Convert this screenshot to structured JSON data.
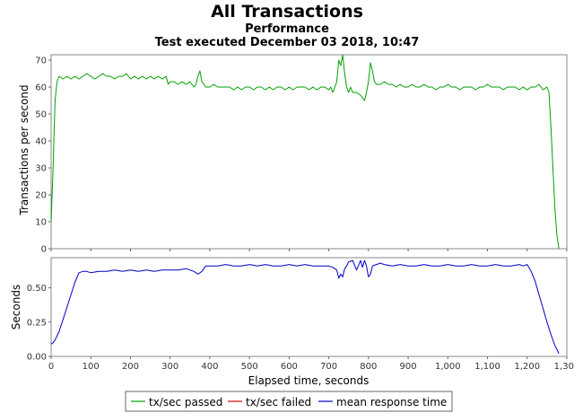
{
  "chart_data": [
    {
      "type": "line",
      "title": "All Transactions",
      "subtitle": "Performance",
      "subtitle2": "Test executed December 03 2018, 10:47",
      "xlabel": "",
      "ylabel": "Transactions per second",
      "xlim": [
        0,
        1300
      ],
      "ylim": [
        0,
        72
      ],
      "y_ticks": [
        "0",
        "10",
        "20",
        "30",
        "40",
        "50",
        "60",
        "70"
      ],
      "grid": false,
      "series": [
        {
          "name": "tx/sec passed",
          "color": "#00a000",
          "x": [
            0,
            5,
            10,
            15,
            20,
            30,
            40,
            50,
            60,
            70,
            80,
            90,
            100,
            110,
            120,
            130,
            140,
            150,
            160,
            170,
            180,
            190,
            200,
            210,
            220,
            230,
            240,
            250,
            260,
            270,
            280,
            290,
            295,
            300,
            310,
            320,
            330,
            340,
            350,
            360,
            365,
            370,
            375,
            380,
            385,
            390,
            400,
            410,
            420,
            430,
            440,
            450,
            460,
            470,
            480,
            490,
            500,
            510,
            520,
            530,
            540,
            550,
            560,
            570,
            580,
            590,
            600,
            610,
            620,
            630,
            640,
            650,
            660,
            670,
            680,
            690,
            700,
            705,
            710,
            715,
            720,
            725,
            730,
            735,
            740,
            745,
            750,
            755,
            760,
            770,
            780,
            790,
            795,
            800,
            805,
            810,
            815,
            820,
            830,
            840,
            850,
            860,
            870,
            880,
            890,
            900,
            910,
            920,
            930,
            940,
            950,
            960,
            970,
            980,
            990,
            1000,
            1010,
            1020,
            1030,
            1040,
            1050,
            1060,
            1070,
            1080,
            1090,
            1100,
            1110,
            1120,
            1130,
            1140,
            1150,
            1160,
            1170,
            1180,
            1190,
            1200,
            1210,
            1220,
            1230,
            1240,
            1250,
            1255,
            1260,
            1265,
            1270,
            1275,
            1280
          ],
          "y": [
            10,
            30,
            55,
            62,
            64,
            63,
            64,
            63,
            64,
            63,
            64,
            65,
            64,
            63,
            64,
            65,
            64,
            64,
            63,
            64,
            64,
            65,
            63,
            64,
            63,
            64,
            63,
            64,
            63,
            64,
            63,
            64,
            61,
            62,
            62,
            61,
            62,
            61,
            62,
            60,
            61,
            64,
            66,
            62,
            61,
            60,
            60,
            61,
            60,
            60,
            60,
            60,
            59,
            60,
            59,
            60,
            60,
            59,
            60,
            60,
            59,
            60,
            59,
            60,
            60,
            59,
            60,
            59,
            60,
            60,
            60,
            59,
            60,
            59,
            60,
            60,
            59,
            60,
            58,
            60,
            62,
            70,
            68,
            72,
            65,
            60,
            58,
            60,
            58,
            58,
            57,
            55,
            58,
            62,
            69,
            66,
            62,
            61,
            61,
            62,
            61,
            61,
            60,
            61,
            60,
            60,
            61,
            60,
            60,
            61,
            60,
            60,
            59,
            60,
            60,
            61,
            60,
            60,
            59,
            60,
            60,
            60,
            59,
            60,
            60,
            61,
            60,
            60,
            60,
            59,
            60,
            60,
            60,
            59,
            60,
            59,
            60,
            60,
            61,
            59,
            60,
            58,
            45,
            30,
            15,
            5,
            0
          ]
        },
        {
          "name": "tx/sec failed",
          "color": "#e00000",
          "x": [],
          "y": []
        }
      ]
    },
    {
      "type": "line",
      "xlabel": "Elapsed time, seconds",
      "ylabel": "Seconds",
      "xlim": [
        0,
        1300
      ],
      "ylim": [
        0,
        0.72
      ],
      "y_ticks": [
        "0.00",
        "0.25",
        "0.50"
      ],
      "x_ticks": [
        "0",
        "100",
        "200",
        "300",
        "400",
        "500",
        "600",
        "700",
        "800",
        "900",
        "1,000",
        "1,100",
        "1,200",
        "1,300"
      ],
      "grid": false,
      "series": [
        {
          "name": "mean response time",
          "color": "#0000c8",
          "x": [
            0,
            5,
            10,
            20,
            30,
            40,
            50,
            60,
            70,
            80,
            90,
            100,
            120,
            140,
            160,
            180,
            200,
            220,
            240,
            260,
            280,
            300,
            320,
            340,
            360,
            370,
            380,
            390,
            400,
            420,
            440,
            460,
            480,
            500,
            520,
            540,
            560,
            580,
            600,
            620,
            640,
            660,
            680,
            700,
            710,
            720,
            725,
            730,
            735,
            740,
            745,
            750,
            760,
            770,
            780,
            785,
            790,
            795,
            800,
            805,
            810,
            820,
            830,
            840,
            860,
            880,
            900,
            920,
            940,
            960,
            980,
            1000,
            1020,
            1040,
            1060,
            1080,
            1100,
            1120,
            1140,
            1160,
            1180,
            1190,
            1200,
            1210,
            1220,
            1230,
            1240,
            1250,
            1260,
            1270,
            1280
          ],
          "y": [
            0.09,
            0.1,
            0.12,
            0.18,
            0.27,
            0.36,
            0.45,
            0.54,
            0.61,
            0.62,
            0.62,
            0.61,
            0.62,
            0.62,
            0.63,
            0.62,
            0.63,
            0.62,
            0.63,
            0.62,
            0.63,
            0.63,
            0.63,
            0.64,
            0.62,
            0.6,
            0.62,
            0.66,
            0.66,
            0.66,
            0.67,
            0.66,
            0.66,
            0.67,
            0.66,
            0.67,
            0.66,
            0.66,
            0.67,
            0.66,
            0.67,
            0.66,
            0.66,
            0.66,
            0.65,
            0.63,
            0.57,
            0.6,
            0.58,
            0.64,
            0.66,
            0.69,
            0.7,
            0.63,
            0.7,
            0.65,
            0.7,
            0.66,
            0.58,
            0.6,
            0.66,
            0.67,
            0.68,
            0.67,
            0.66,
            0.67,
            0.66,
            0.66,
            0.67,
            0.66,
            0.66,
            0.67,
            0.66,
            0.66,
            0.67,
            0.66,
            0.66,
            0.67,
            0.66,
            0.66,
            0.67,
            0.66,
            0.67,
            0.62,
            0.55,
            0.45,
            0.35,
            0.25,
            0.16,
            0.08,
            0.02
          ]
        }
      ]
    }
  ],
  "legend": [
    {
      "label": "tx/sec passed",
      "color": "#00a000"
    },
    {
      "label": "tx/sec failed",
      "color": "#e00000"
    },
    {
      "label": "mean response time",
      "color": "#0000c8"
    }
  ]
}
